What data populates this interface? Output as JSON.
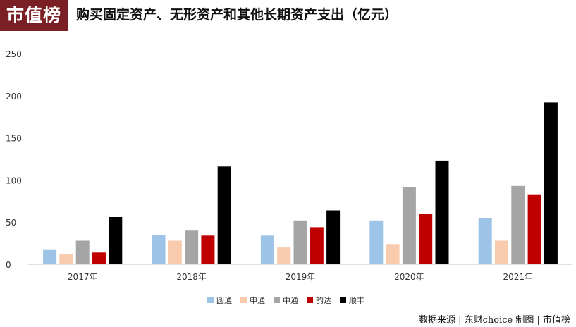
{
  "header": {
    "logo_text": "市值榜",
    "title": "购买固定资产、无形资产和其他长期资产支出（亿元）"
  },
  "footer": {
    "text": "数据来源 | 东财choice  制图 | 市值榜"
  },
  "colors": {
    "brand": "#7a1f24",
    "series": [
      "#9dc3e6",
      "#f8cbad",
      "#a5a5a5",
      "#c00000",
      "#000000"
    ]
  },
  "chart_data": {
    "type": "bar",
    "categories": [
      "2017年",
      "2018年",
      "2019年",
      "2020年",
      "2021年"
    ],
    "series": [
      {
        "name": "圆通",
        "values": [
          17,
          35,
          34,
          52,
          55
        ]
      },
      {
        "name": "申通",
        "values": [
          12,
          28,
          20,
          24,
          28
        ]
      },
      {
        "name": "中通",
        "values": [
          28,
          40,
          52,
          92,
          93
        ]
      },
      {
        "name": "韵达",
        "values": [
          14,
          34,
          44,
          60,
          83
        ]
      },
      {
        "name": "顺丰",
        "values": [
          56,
          116,
          64,
          123,
          192
        ]
      }
    ],
    "ylim": [
      0,
      250
    ],
    "yticks": [
      0,
      50,
      100,
      150,
      200,
      250
    ],
    "grid": false,
    "legend_position": "bottom"
  }
}
